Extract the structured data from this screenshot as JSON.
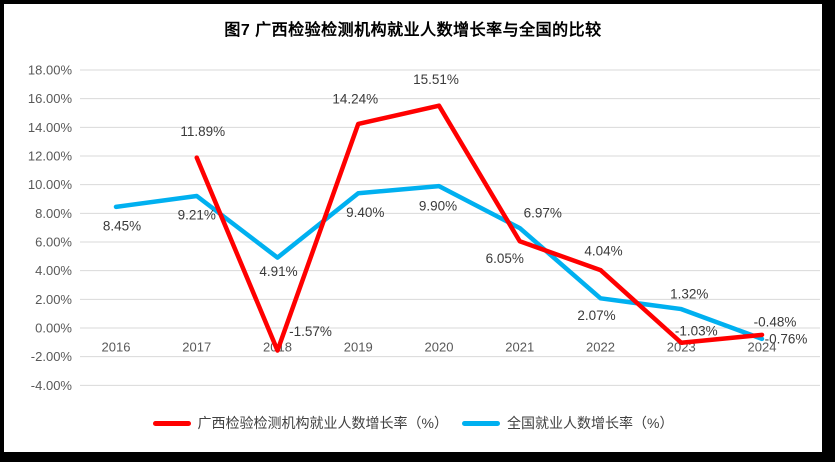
{
  "title": "图7 广西检验检测机构就业人数增长率与全国的比较",
  "chart_data": {
    "type": "line",
    "categories": [
      "2016",
      "2017",
      "2018",
      "2019",
      "2020",
      "2021",
      "2022",
      "2023",
      "2024"
    ],
    "series": [
      {
        "name": "广西检验检测机构就业人数增长率（%）",
        "color": "#FF0000",
        "values": [
          null,
          11.89,
          -1.57,
          14.24,
          15.51,
          6.05,
          4.04,
          -1.03,
          -0.48
        ],
        "labels": [
          "",
          "11.89%",
          "-1.57%",
          "14.24%",
          "15.51%",
          "6.05%",
          "4.04%",
          "-1.03%",
          "-0.48%"
        ]
      },
      {
        "name": "全国就业人数增长率（%）",
        "color": "#00B0F0",
        "values": [
          8.45,
          9.21,
          4.91,
          9.4,
          9.9,
          6.97,
          2.07,
          1.32,
          -0.76
        ],
        "labels": [
          "8.45%",
          "9.21%",
          "4.91%",
          "9.40%",
          "9.90%",
          "6.97%",
          "2.07%",
          "1.32%",
          "-0.76%"
        ]
      }
    ],
    "ylim": [
      -4,
      18
    ],
    "ytick_step": 2,
    "ytick_labels": [
      "18.00%",
      "16.00%",
      "14.00%",
      "12.00%",
      "10.00%",
      "8.00%",
      "6.00%",
      "4.00%",
      "2.00%",
      "0.00%",
      "-2.00%",
      "-4.00%"
    ],
    "grid": true,
    "legend_position": "bottom"
  },
  "legend": {
    "items": [
      {
        "label": "广西检验检测机构就业人数增长率（%）",
        "color": "#FF0000"
      },
      {
        "label": "全国就业人数增长率（%）",
        "color": "#00B0F0"
      }
    ]
  },
  "colors": {
    "series_red": "#FF0000",
    "series_blue": "#00B0F0",
    "gridline": "#D9D9D9",
    "axis_text": "#595959",
    "data_label_text": "#3A3A3A",
    "frame_border": "#000000",
    "background": "#FFFFFF"
  }
}
